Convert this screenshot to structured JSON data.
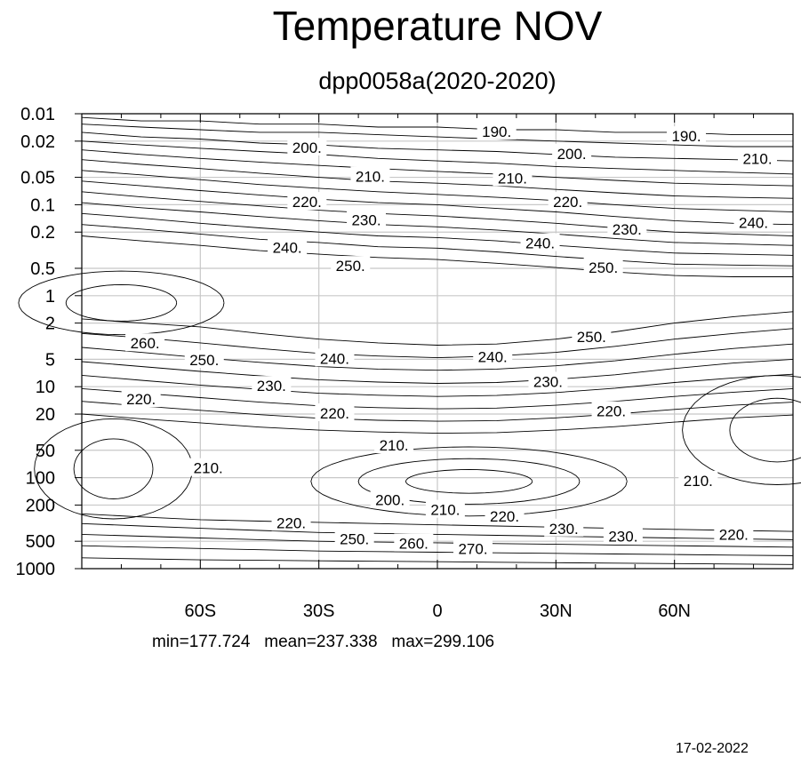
{
  "title": "Temperature NOV",
  "subtitle": "dpp0058a(2020-2020)",
  "stats": {
    "min_label": "min=177.724",
    "mean_label": "mean=237.338",
    "max_label": "max=299.106"
  },
  "date": "17-02-2022",
  "chart_data": {
    "type": "contour",
    "title": "Temperature NOV",
    "subtitle": "dpp0058a(2020-2020)",
    "x_axis": {
      "ticks": [
        -60,
        -30,
        0,
        30,
        60
      ],
      "tick_labels": [
        "60S",
        "30S",
        "0",
        "30N",
        "60N"
      ],
      "range": [
        -90,
        90
      ]
    },
    "y_axis": {
      "scale": "log",
      "reversed": true,
      "ticks": [
        0.01,
        0.02,
        0.05,
        0.1,
        0.2,
        0.5,
        1,
        2,
        5,
        10,
        20,
        50,
        100,
        200,
        500,
        1000
      ],
      "tick_labels": [
        "0.01",
        "0.02",
        "0.05",
        "0.1",
        "0.2",
        "0.5",
        "1",
        "2",
        "5",
        "10",
        "20",
        "50",
        "100",
        "200",
        "500",
        "1000"
      ],
      "range": [
        0.01,
        1000
      ]
    },
    "grid": true,
    "contour_interval": 5,
    "contour_levels": [
      190,
      200,
      210,
      220,
      230,
      240,
      250,
      260,
      270
    ],
    "contour_labels": [
      {
        "text": "190.",
        "lat": 15,
        "p": 0.016
      },
      {
        "text": "190.",
        "lat": 63,
        "p": 0.018
      },
      {
        "text": "200.",
        "lat": -33,
        "p": 0.024
      },
      {
        "text": "200.",
        "lat": 34,
        "p": 0.028
      },
      {
        "text": "210.",
        "lat": -17,
        "p": 0.05
      },
      {
        "text": "210.",
        "lat": 19,
        "p": 0.052
      },
      {
        "text": "210.",
        "lat": 81,
        "p": 0.032
      },
      {
        "text": "220.",
        "lat": -33,
        "p": 0.095
      },
      {
        "text": "220.",
        "lat": 33,
        "p": 0.095
      },
      {
        "text": "230.",
        "lat": -18,
        "p": 0.15
      },
      {
        "text": "230.",
        "lat": 48,
        "p": 0.19
      },
      {
        "text": "240.",
        "lat": -38,
        "p": 0.3
      },
      {
        "text": "240.",
        "lat": 26,
        "p": 0.27
      },
      {
        "text": "240.",
        "lat": 80,
        "p": 0.16
      },
      {
        "text": "250.",
        "lat": -22,
        "p": 0.48
      },
      {
        "text": "250.",
        "lat": 42,
        "p": 0.5
      },
      {
        "text": "250.",
        "lat": 39,
        "p": 2.9
      },
      {
        "text": "260.",
        "lat": -74,
        "p": 3.4
      },
      {
        "text": "250.",
        "lat": -59,
        "p": 5.2
      },
      {
        "text": "240.",
        "lat": -26,
        "p": 5.0
      },
      {
        "text": "240.",
        "lat": 14,
        "p": 4.8
      },
      {
        "text": "230.",
        "lat": -42,
        "p": 10
      },
      {
        "text": "230.",
        "lat": 28,
        "p": 9
      },
      {
        "text": "220.",
        "lat": -75,
        "p": 14
      },
      {
        "text": "220.",
        "lat": -26,
        "p": 20
      },
      {
        "text": "220.",
        "lat": 44,
        "p": 19
      },
      {
        "text": "210.",
        "lat": -58,
        "p": 80
      },
      {
        "text": "210.",
        "lat": -11,
        "p": 45
      },
      {
        "text": "210.",
        "lat": 66,
        "p": 110
      },
      {
        "text": "200.",
        "lat": -12,
        "p": 180
      },
      {
        "text": "210.",
        "lat": 2,
        "p": 230
      },
      {
        "text": "220.",
        "lat": 17,
        "p": 270
      },
      {
        "text": "220.",
        "lat": -37,
        "p": 320
      },
      {
        "text": "230.",
        "lat": 32,
        "p": 370
      },
      {
        "text": "230.",
        "lat": 47,
        "p": 450
      },
      {
        "text": "220.",
        "lat": 75,
        "p": 430
      },
      {
        "text": "250.",
        "lat": -21,
        "p": 480
      },
      {
        "text": "260.",
        "lat": -6,
        "p": 540
      },
      {
        "text": "270.",
        "lat": 9,
        "p": 620
      }
    ],
    "statistics": {
      "min": 177.724,
      "mean": 237.338,
      "max": 299.106
    }
  }
}
